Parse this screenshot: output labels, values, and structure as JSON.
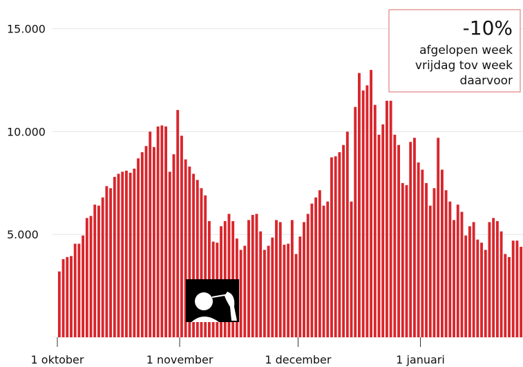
{
  "chart_data": {
    "type": "bar",
    "categories": [
      "1 oktober",
      null,
      null,
      null,
      null,
      null,
      null,
      null,
      null,
      null,
      null,
      null,
      null,
      null,
      null,
      null,
      null,
      null,
      null,
      null,
      null,
      null,
      null,
      null,
      null,
      null,
      null,
      null,
      null,
      null,
      null,
      "1 november",
      null,
      null,
      null,
      null,
      null,
      null,
      null,
      null,
      null,
      null,
      null,
      null,
      null,
      null,
      null,
      null,
      null,
      null,
      null,
      null,
      null,
      null,
      null,
      null,
      null,
      null,
      null,
      null,
      null,
      "1 december",
      null,
      null,
      null,
      null,
      null,
      null,
      null,
      null,
      null,
      null,
      null,
      null,
      null,
      null,
      null,
      null,
      null,
      null,
      null,
      null,
      null,
      null,
      null,
      null,
      null,
      null,
      null,
      null,
      null,
      null,
      "1 januari",
      null,
      null,
      null,
      null,
      null,
      null,
      null,
      null,
      null,
      null,
      null,
      null,
      null,
      null,
      null,
      null,
      null,
      null,
      null,
      null,
      null,
      null,
      null,
      null,
      null
    ],
    "values": [
      3200,
      3800,
      3900,
      3950,
      4550,
      4550,
      4950,
      5800,
      5900,
      6450,
      6400,
      6800,
      7350,
      7250,
      7800,
      7950,
      8050,
      8100,
      8000,
      8200,
      8700,
      9000,
      9300,
      10000,
      9250,
      10250,
      10300,
      10250,
      8050,
      8900,
      11050,
      9800,
      8650,
      8300,
      7950,
      7650,
      7250,
      6900,
      5650,
      4650,
      4600,
      5400,
      5650,
      6000,
      5650,
      4800,
      4250,
      4450,
      5700,
      5950,
      6000,
      5150,
      4250,
      4450,
      4850,
      5700,
      5600,
      4500,
      4550,
      5700,
      4050,
      4900,
      5600,
      6000,
      6500,
      6800,
      7150,
      6400,
      6600,
      8750,
      8800,
      9000,
      9350,
      10000,
      6600,
      11200,
      12850,
      12000,
      12250,
      13000,
      11300,
      9850,
      10350,
      11500,
      11500,
      9850,
      9350,
      7500,
      7400,
      9500,
      9700,
      8500,
      8150,
      7500,
      6400,
      7250,
      9700,
      8150,
      7150,
      6600,
      5700,
      6450,
      6100,
      4950,
      5400,
      5600,
      4750,
      4600,
      4250,
      5600,
      5800,
      5650,
      5150,
      4050,
      3900,
      4700,
      4700,
      4400
    ],
    "color": "#d8262c",
    "ylim": [
      0,
      16400
    ],
    "yticks": [
      {
        "value": 5000,
        "label": "5.000"
      },
      {
        "value": 10000,
        "label": "10.000"
      },
      {
        "value": 15000,
        "label": "15.000"
      }
    ],
    "grid": true,
    "annotation": {
      "headline": "-10%",
      "lines": [
        "afgelopen week",
        "vrijdag tov week",
        "daarvoor"
      ]
    }
  }
}
